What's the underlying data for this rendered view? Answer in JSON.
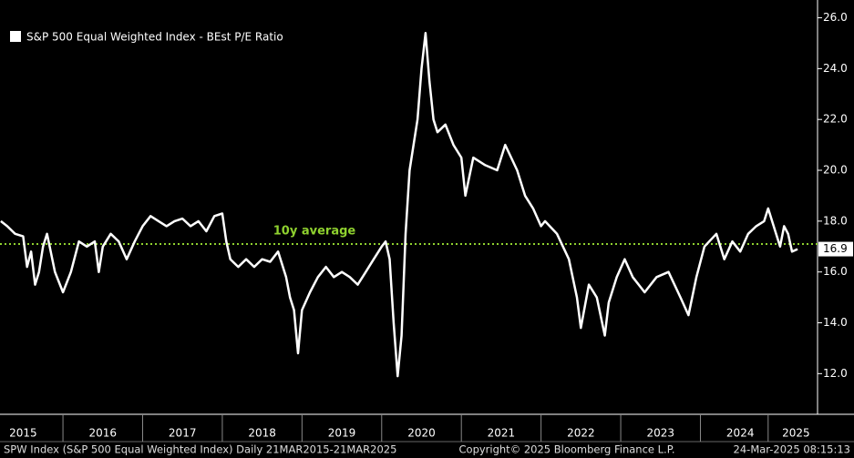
{
  "chart_data": {
    "type": "line",
    "series": [
      {
        "name": "S&P 500 Equal Weighted Index - BEst P/E Ratio",
        "color": "#ffffff",
        "x": [
          2015.22,
          2015.3,
          2015.4,
          2015.5,
          2015.55,
          2015.6,
          2015.65,
          2015.7,
          2015.75,
          2015.8,
          2015.9,
          2016.0,
          2016.1,
          2016.2,
          2016.3,
          2016.4,
          2016.45,
          2016.5,
          2016.6,
          2016.7,
          2016.8,
          2016.9,
          2017.0,
          2017.1,
          2017.2,
          2017.3,
          2017.4,
          2017.5,
          2017.6,
          2017.7,
          2017.8,
          2017.9,
          2018.0,
          2018.05,
          2018.1,
          2018.2,
          2018.3,
          2018.4,
          2018.5,
          2018.6,
          2018.7,
          2018.8,
          2018.85,
          2018.9,
          2018.95,
          2019.0,
          2019.1,
          2019.2,
          2019.3,
          2019.4,
          2019.5,
          2019.6,
          2019.7,
          2019.8,
          2019.9,
          2020.0,
          2020.05,
          2020.1,
          2020.15,
          2020.2,
          2020.25,
          2020.3,
          2020.35,
          2020.45,
          2020.5,
          2020.55,
          2020.6,
          2020.65,
          2020.7,
          2020.8,
          2020.9,
          2021.0,
          2021.05,
          2021.15,
          2021.3,
          2021.45,
          2021.55,
          2021.7,
          2021.8,
          2021.9,
          2022.0,
          2022.05,
          2022.2,
          2022.35,
          2022.45,
          2022.5,
          2022.6,
          2022.7,
          2022.8,
          2022.85,
          2022.95,
          2023.05,
          2023.15,
          2023.3,
          2023.45,
          2023.6,
          2023.75,
          2023.85,
          2023.95,
          2024.05,
          2024.2,
          2024.3,
          2024.4,
          2024.5,
          2024.6,
          2024.7,
          2024.8,
          2024.85,
          2024.95,
          2025.0,
          2025.05,
          2025.1,
          2025.15,
          2025.22
        ],
        "values": [
          18.0,
          17.8,
          17.5,
          17.4,
          16.2,
          16.8,
          15.5,
          16.0,
          17.0,
          17.5,
          16.0,
          15.2,
          16.0,
          17.2,
          17.0,
          17.2,
          16.0,
          17.0,
          17.5,
          17.2,
          16.5,
          17.2,
          17.8,
          18.2,
          18.0,
          17.8,
          18.0,
          18.1,
          17.8,
          18.0,
          17.6,
          18.2,
          18.3,
          17.2,
          16.5,
          16.2,
          16.5,
          16.2,
          16.5,
          16.4,
          16.8,
          15.8,
          15.0,
          14.5,
          12.8,
          14.5,
          15.2,
          15.8,
          16.2,
          15.8,
          16.0,
          15.8,
          15.5,
          16.0,
          16.5,
          17.0,
          17.2,
          16.5,
          14.0,
          11.9,
          13.5,
          17.5,
          20.0,
          22.0,
          24.0,
          25.4,
          23.5,
          22.0,
          21.5,
          21.8,
          21.0,
          20.5,
          19.0,
          20.5,
          20.2,
          20.0,
          21.0,
          20.0,
          19.0,
          18.5,
          17.8,
          18.0,
          17.5,
          16.5,
          15.0,
          13.8,
          15.5,
          15.0,
          13.5,
          14.8,
          15.8,
          16.5,
          15.8,
          15.2,
          15.8,
          16.0,
          15.0,
          14.3,
          15.8,
          17.0,
          17.5,
          16.5,
          17.2,
          16.8,
          17.5,
          17.8,
          18.0,
          18.5,
          17.5,
          17.0,
          17.8,
          17.5,
          16.8,
          16.9
        ]
      }
    ],
    "reference_lines": [
      {
        "value": 17.1,
        "label": "10y average",
        "color": "#8fd12f"
      }
    ],
    "xlim": [
      2015.21,
      2025.47
    ],
    "xticks": [
      {
        "value": 2015.5,
        "label": "2015"
      },
      {
        "value": 2016.5,
        "label": "2016"
      },
      {
        "value": 2017.5,
        "label": "2017"
      },
      {
        "value": 2018.5,
        "label": "2018"
      },
      {
        "value": 2019.5,
        "label": "2019"
      },
      {
        "value": 2020.5,
        "label": "2020"
      },
      {
        "value": 2021.5,
        "label": "2021"
      },
      {
        "value": 2022.5,
        "label": "2022"
      },
      {
        "value": 2023.5,
        "label": "2023"
      },
      {
        "value": 2024.5,
        "label": "2024"
      },
      {
        "value": 2025.2,
        "label": "2025"
      }
    ],
    "ylim": [
      10.4,
      26.7
    ],
    "yticks": [
      {
        "value": 12,
        "label": "12.0"
      },
      {
        "value": 14,
        "label": "14.0"
      },
      {
        "value": 16,
        "label": "16.0"
      },
      {
        "value": 18,
        "label": "18.0"
      },
      {
        "value": 20,
        "label": "20.0"
      },
      {
        "value": 22,
        "label": "22.0"
      },
      {
        "value": 24,
        "label": "24.0"
      },
      {
        "value": 26,
        "label": "26.0"
      }
    ],
    "footer": [
      "SPW Index (S&P 500 Equal Weighted Index)  Daily 21MAR2015-21MAR2025",
      "Copyright© 2025 Bloomberg Finance L.P.",
      "24-Mar-2025 08:15:13"
    ]
  }
}
